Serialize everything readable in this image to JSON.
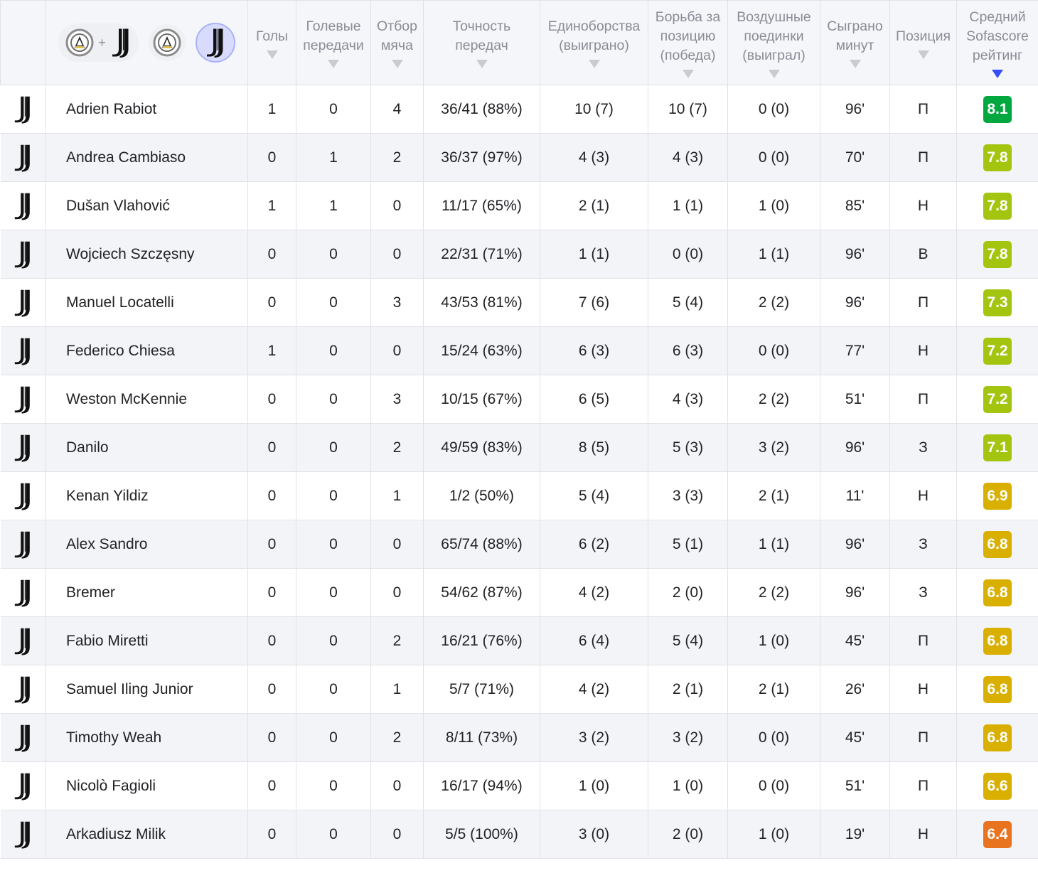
{
  "columns": {
    "goals": "Голы",
    "assists_l1": "Голевые",
    "assists_l2": "передачи",
    "tackles_l1": "Отбор",
    "tackles_l2": "мяча",
    "passes_l1": "Точность",
    "passes_l2": "передач",
    "duels_l1": "Единоборства",
    "duels_l2": "(выиграно)",
    "ground_l1": "Борьба за",
    "ground_l2": "позицию",
    "ground_l3": "(победа)",
    "aerial_l1": "Воздушные",
    "aerial_l2": "поединки",
    "aerial_l3": "(выиграл)",
    "minutes_l1": "Сыграно",
    "minutes_l2": "минут",
    "position": "Позиция",
    "rating_l1": "Средний",
    "rating_l2": "Sofascore",
    "rating_l3": "рейтинг"
  },
  "filter": {
    "plus": "+",
    "combined_icon": "udinese-plus-juventus-icon",
    "home_icon": "udinese-crest-icon",
    "away_icon": "juventus-crest-icon",
    "active": "juventus"
  },
  "colors": {
    "rating_8": "#00a83f",
    "rating_7": "#a4c510",
    "rating_6": "#d9af00",
    "rating_low": "#e8741f",
    "sort_active": "#374df5"
  },
  "rows": [
    {
      "name": "Adrien Rabiot",
      "goals": "1",
      "assists": "0",
      "tackles": "4",
      "passes": "36/41 (88%)",
      "duels": "10 (7)",
      "ground": "10 (7)",
      "aerial": "0 (0)",
      "minutes": "96'",
      "position": "П",
      "rating": "8.1",
      "rating_value": 8.1
    },
    {
      "name": "Andrea Cambiaso",
      "goals": "0",
      "assists": "1",
      "tackles": "2",
      "passes": "36/37 (97%)",
      "duels": "4 (3)",
      "ground": "4 (3)",
      "aerial": "0 (0)",
      "minutes": "70'",
      "position": "П",
      "rating": "7.8",
      "rating_value": 7.8
    },
    {
      "name": "Dušan Vlahović",
      "goals": "1",
      "assists": "1",
      "tackles": "0",
      "passes": "11/17 (65%)",
      "duels": "2 (1)",
      "ground": "1 (1)",
      "aerial": "1 (0)",
      "minutes": "85'",
      "position": "Н",
      "rating": "7.8",
      "rating_value": 7.8
    },
    {
      "name": "Wojciech Szczęsny",
      "goals": "0",
      "assists": "0",
      "tackles": "0",
      "passes": "22/31 (71%)",
      "duels": "1 (1)",
      "ground": "0 (0)",
      "aerial": "1 (1)",
      "minutes": "96'",
      "position": "В",
      "rating": "7.8",
      "rating_value": 7.8
    },
    {
      "name": "Manuel Locatelli",
      "goals": "0",
      "assists": "0",
      "tackles": "3",
      "passes": "43/53 (81%)",
      "duels": "7 (6)",
      "ground": "5 (4)",
      "aerial": "2 (2)",
      "minutes": "96'",
      "position": "П",
      "rating": "7.3",
      "rating_value": 7.3
    },
    {
      "name": "Federico Chiesa",
      "goals": "1",
      "assists": "0",
      "tackles": "0",
      "passes": "15/24 (63%)",
      "duels": "6 (3)",
      "ground": "6 (3)",
      "aerial": "0 (0)",
      "minutes": "77'",
      "position": "Н",
      "rating": "7.2",
      "rating_value": 7.2
    },
    {
      "name": "Weston McKennie",
      "goals": "0",
      "assists": "0",
      "tackles": "3",
      "passes": "10/15 (67%)",
      "duels": "6 (5)",
      "ground": "4 (3)",
      "aerial": "2 (2)",
      "minutes": "51'",
      "position": "П",
      "rating": "7.2",
      "rating_value": 7.2
    },
    {
      "name": "Danilo",
      "goals": "0",
      "assists": "0",
      "tackles": "2",
      "passes": "49/59 (83%)",
      "duels": "8 (5)",
      "ground": "5 (3)",
      "aerial": "3 (2)",
      "minutes": "96'",
      "position": "З",
      "rating": "7.1",
      "rating_value": 7.1
    },
    {
      "name": "Kenan Yildiz",
      "goals": "0",
      "assists": "0",
      "tackles": "1",
      "passes": "1/2 (50%)",
      "duels": "5 (4)",
      "ground": "3 (3)",
      "aerial": "2 (1)",
      "minutes": "11'",
      "position": "Н",
      "rating": "6.9",
      "rating_value": 6.9
    },
    {
      "name": "Alex Sandro",
      "goals": "0",
      "assists": "0",
      "tackles": "0",
      "passes": "65/74 (88%)",
      "duels": "6 (2)",
      "ground": "5 (1)",
      "aerial": "1 (1)",
      "minutes": "96'",
      "position": "З",
      "rating": "6.8",
      "rating_value": 6.8
    },
    {
      "name": "Bremer",
      "goals": "0",
      "assists": "0",
      "tackles": "0",
      "passes": "54/62 (87%)",
      "duels": "4 (2)",
      "ground": "2 (0)",
      "aerial": "2 (2)",
      "minutes": "96'",
      "position": "З",
      "rating": "6.8",
      "rating_value": 6.8
    },
    {
      "name": "Fabio Miretti",
      "goals": "0",
      "assists": "0",
      "tackles": "2",
      "passes": "16/21 (76%)",
      "duels": "6 (4)",
      "ground": "5 (4)",
      "aerial": "1 (0)",
      "minutes": "45'",
      "position": "П",
      "rating": "6.8",
      "rating_value": 6.8
    },
    {
      "name": "Samuel Iling Junior",
      "goals": "0",
      "assists": "0",
      "tackles": "1",
      "passes": "5/7 (71%)",
      "duels": "4 (2)",
      "ground": "2 (1)",
      "aerial": "2 (1)",
      "minutes": "26'",
      "position": "Н",
      "rating": "6.8",
      "rating_value": 6.8
    },
    {
      "name": "Timothy Weah",
      "goals": "0",
      "assists": "0",
      "tackles": "2",
      "passes": "8/11 (73%)",
      "duels": "3 (2)",
      "ground": "3 (2)",
      "aerial": "0 (0)",
      "minutes": "45'",
      "position": "П",
      "rating": "6.8",
      "rating_value": 6.8
    },
    {
      "name": "Nicolò Fagioli",
      "goals": "0",
      "assists": "0",
      "tackles": "0",
      "passes": "16/17 (94%)",
      "duels": "1 (0)",
      "ground": "1 (0)",
      "aerial": "0 (0)",
      "minutes": "51'",
      "position": "П",
      "rating": "6.6",
      "rating_value": 6.6
    },
    {
      "name": "Arkadiusz Milik",
      "goals": "0",
      "assists": "0",
      "tackles": "0",
      "passes": "5/5 (100%)",
      "duels": "3 (0)",
      "ground": "2 (0)",
      "aerial": "1 (0)",
      "minutes": "19'",
      "position": "Н",
      "rating": "6.4",
      "rating_value": 6.4
    }
  ]
}
